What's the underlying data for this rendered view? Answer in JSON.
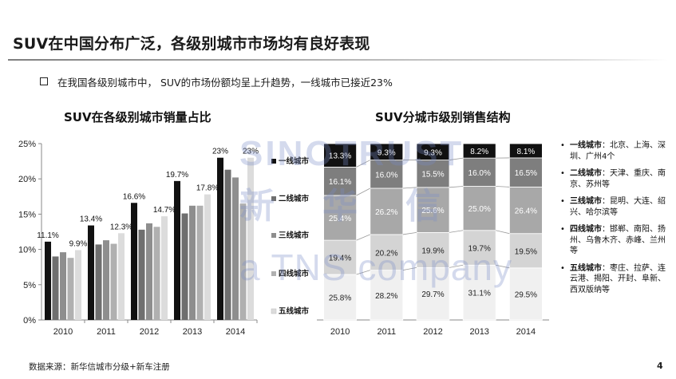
{
  "header": {
    "title": "SUV在中国分布广泛，各级别城市市场均有良好表现",
    "bullet": "在我国各级别城市中， SUV的市场份额均呈上升趋势，一线城市已接近23%"
  },
  "watermark": {
    "line1": "SINOTRUST",
    "line2": "新华信",
    "line3": "a TNS company"
  },
  "chart_data": [
    {
      "type": "bar",
      "title": "SUV在各级别城市销量占比",
      "categories": [
        "2010",
        "2011",
        "2012",
        "2013",
        "2014"
      ],
      "ylim": [
        0,
        25
      ],
      "yticks": [
        "0%",
        "5%",
        "10%",
        "15%",
        "20%",
        "25%"
      ],
      "series": [
        {
          "name": "一线城市",
          "values": [
            11.1,
            13.4,
            16.6,
            19.7,
            23.0
          ],
          "color": "#111111"
        },
        {
          "name": "二线城市",
          "values": [
            9.0,
            10.7,
            12.8,
            15.1,
            21.3
          ],
          "color": "#6f6f6f"
        },
        {
          "name": "三线城市",
          "values": [
            9.6,
            11.3,
            13.7,
            16.2,
            20.2
          ],
          "color": "#8e8e8e"
        },
        {
          "name": "四线城市",
          "values": [
            8.8,
            10.8,
            13.2,
            16.2,
            16.5
          ],
          "color": "#b0b0b0"
        },
        {
          "name": "五线城市",
          "values": [
            9.9,
            12.3,
            14.7,
            17.8,
            23.0
          ],
          "color": "#dcdcdc"
        }
      ],
      "data_labels": [
        {
          "category": "2010",
          "series": "一线城市",
          "text": "11.1%"
        },
        {
          "category": "2010",
          "series": "五线城市",
          "text": "9.9%"
        },
        {
          "category": "2011",
          "series": "一线城市",
          "text": "13.4%"
        },
        {
          "category": "2011",
          "series": "五线城市",
          "text": "12.3%"
        },
        {
          "category": "2012",
          "series": "一线城市",
          "text": "16.6%"
        },
        {
          "category": "2012",
          "series": "五线城市",
          "text": "14.7%"
        },
        {
          "category": "2013",
          "series": "一线城市",
          "text": "19.7%"
        },
        {
          "category": "2013",
          "series": "五线城市",
          "text": "17.8%"
        },
        {
          "category": "2014",
          "series": "一线城市",
          "text": "23%"
        },
        {
          "category": "2014",
          "series": "五线城市",
          "text": "23%"
        }
      ],
      "legend": "right",
      "grid": false
    },
    {
      "type": "bar",
      "stacked": true,
      "percent": true,
      "title": "SUV分城市级别销售结构",
      "categories": [
        "2010",
        "2011",
        "2012",
        "2013",
        "2014"
      ],
      "series": [
        {
          "name": "五线城市",
          "values": [
            25.8,
            28.2,
            29.7,
            31.1,
            29.5
          ],
          "labels": [
            "25.8%",
            "28.2%",
            "29.7%",
            "31.1%",
            "29.5%"
          ],
          "color": "#f0f0f0"
        },
        {
          "name": "四线城市",
          "values": [
            19.4,
            20.2,
            19.9,
            19.7,
            19.5
          ],
          "labels": [
            "19.4%",
            "20.2%",
            "19.9%",
            "19.7%",
            "19.5%"
          ],
          "color": "#d4d4d4"
        },
        {
          "name": "三线城市",
          "values": [
            25.4,
            26.2,
            25.6,
            25.0,
            26.4
          ],
          "labels": [
            "25.4%",
            "26.2%",
            "25.6%",
            "25.0%",
            "26.4%"
          ],
          "color": "#a8a8a8"
        },
        {
          "name": "二线城市",
          "values": [
            16.1,
            16.0,
            15.5,
            16.0,
            16.5
          ],
          "labels": [
            "16.1%",
            "16.0%",
            "15.5%",
            "16.0%",
            "16.5%"
          ],
          "color": "#7e7e7e"
        },
        {
          "name": "一线城市",
          "values": [
            13.3,
            9.3,
            9.3,
            8.2,
            8.1
          ],
          "labels": [
            "13.3%",
            "9.3%",
            "9.3%",
            "8.2%",
            "8.1%"
          ],
          "color": "#111111"
        }
      ],
      "grid": false
    }
  ],
  "notes": [
    {
      "level": "一线城市",
      "text": "：北京、上海、深圳、广州4个"
    },
    {
      "level": "二线城市",
      "text": "：天津、重庆、南京、苏州等"
    },
    {
      "level": "三线城市",
      "text": "：昆明、大连、绍兴、哈尔滨等"
    },
    {
      "level": "四线城市",
      "text": "：邯郸、南阳、扬州、乌鲁木齐、赤峰、兰州等"
    },
    {
      "level": "五线城市",
      "text": "：枣庄、拉萨、连云港、揭阳、开封、阜新、西双版纳等"
    }
  ],
  "footer": {
    "source": "数据来源：新华信城市分级+新车注册",
    "page": "4"
  }
}
